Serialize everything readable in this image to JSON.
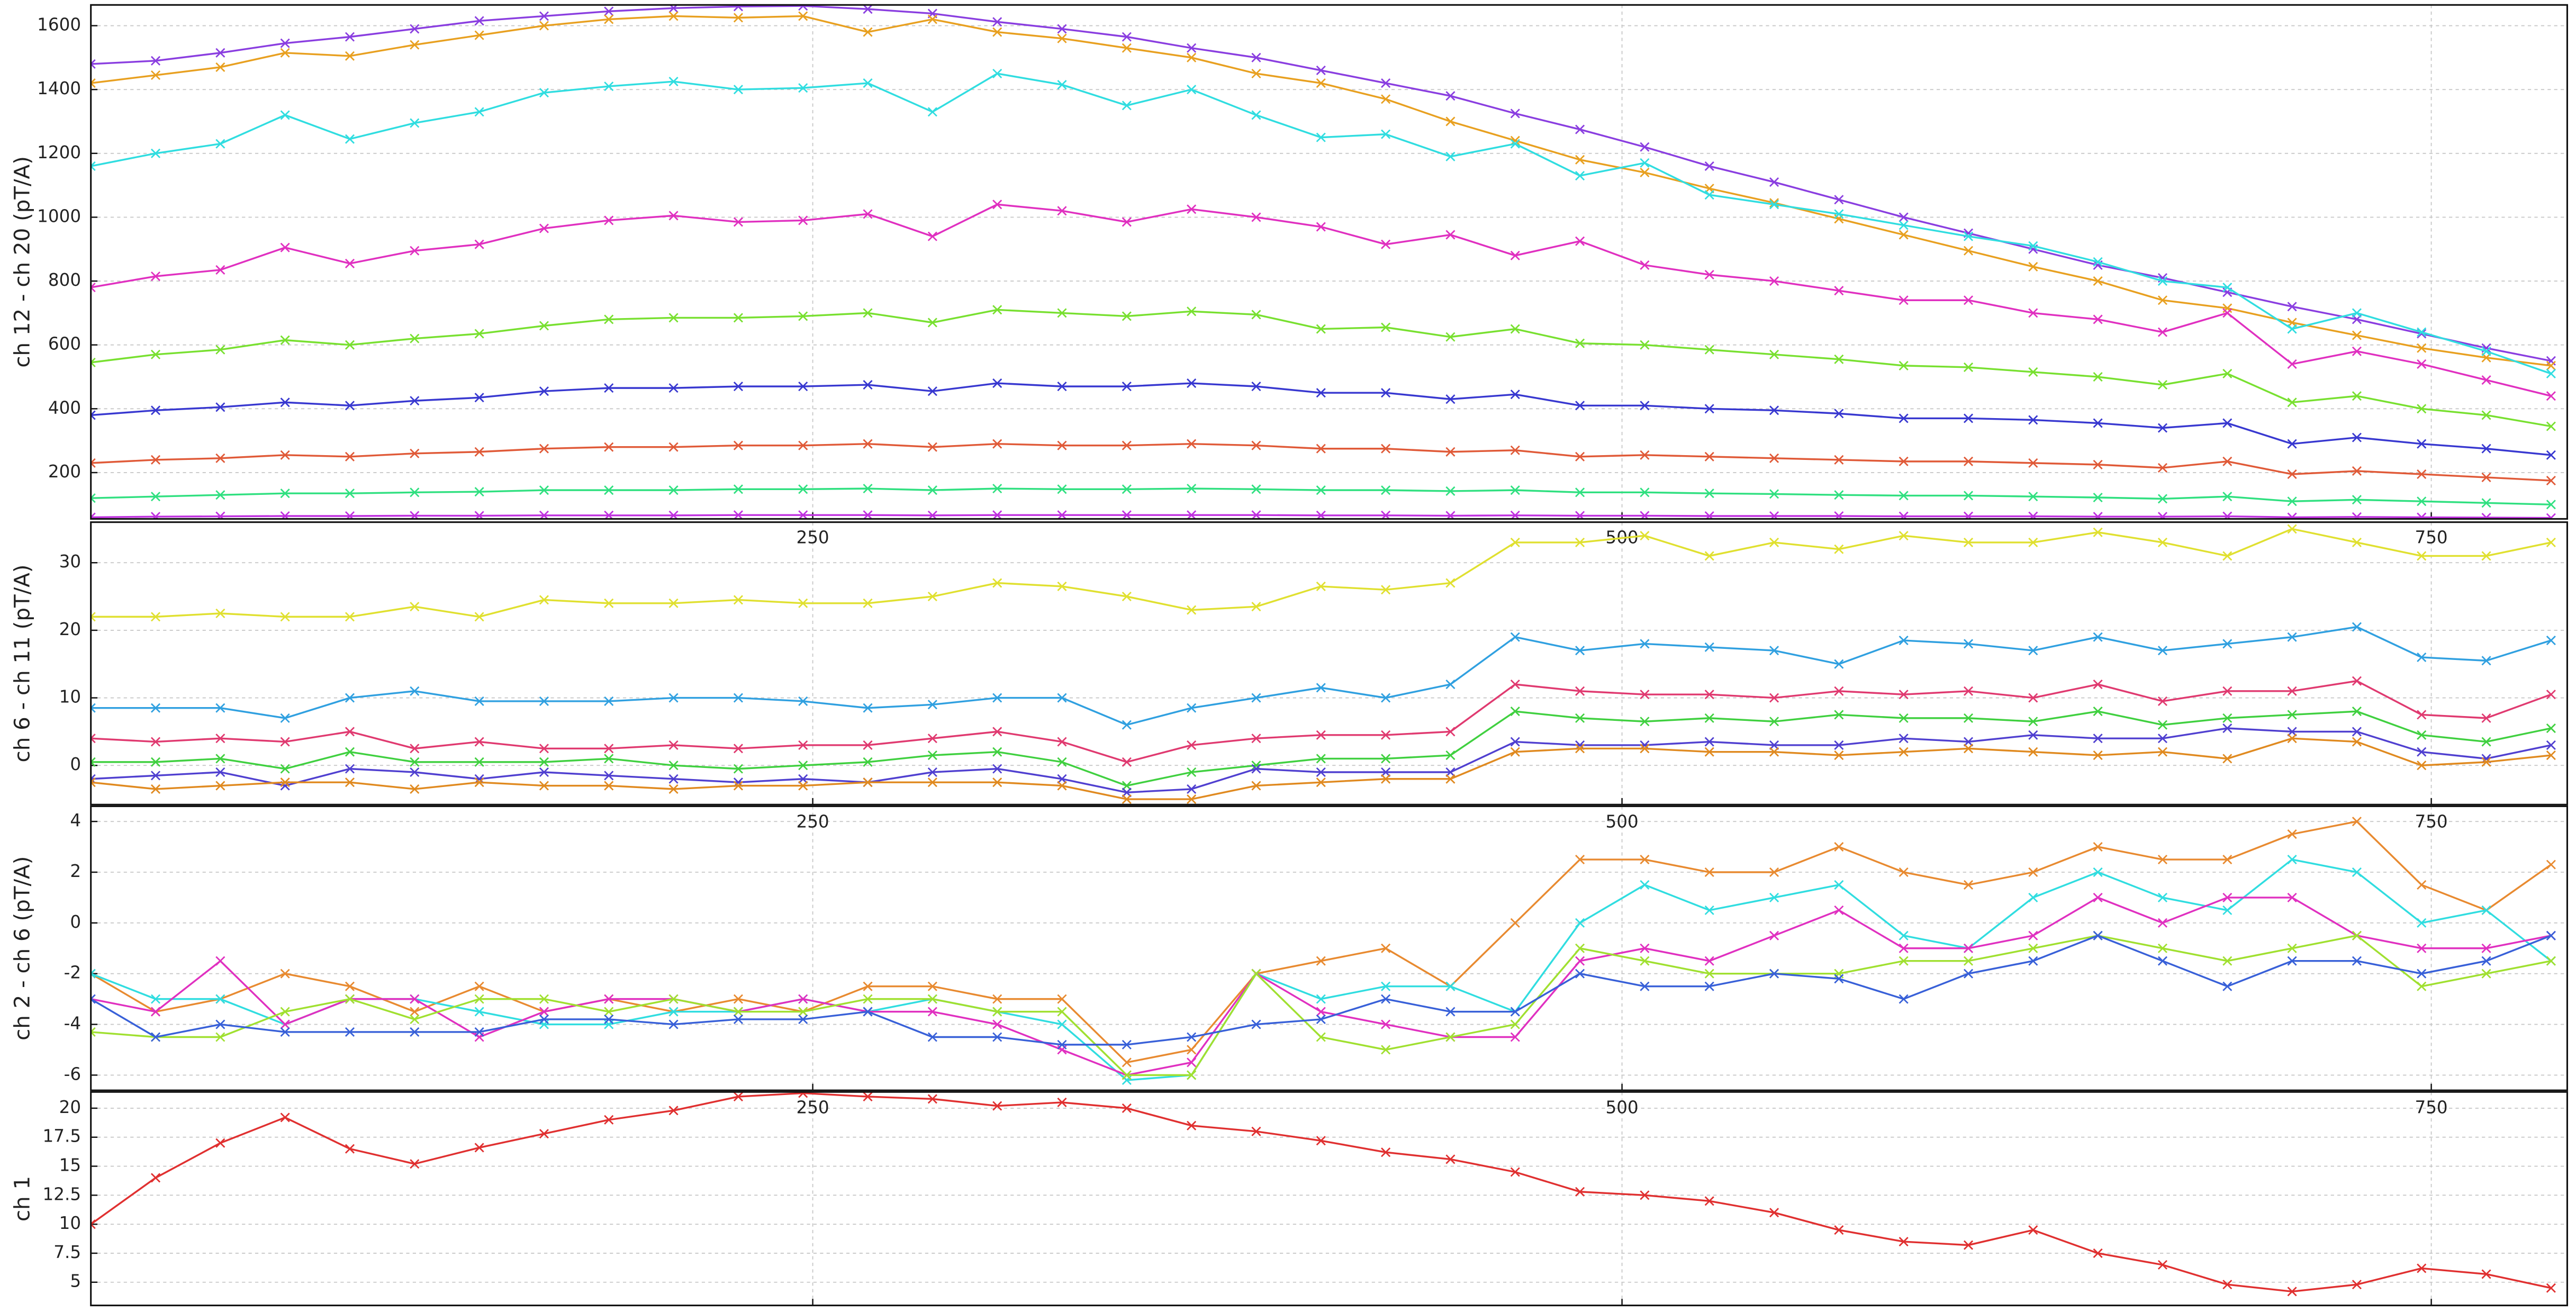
{
  "chart_data": [
    {
      "type": "line",
      "ylabel": "ch 12 - ch 20 (pT/A)",
      "marker": "x",
      "grid": true,
      "x": [
        27,
        47,
        67,
        87,
        107,
        127,
        147,
        167,
        187,
        207,
        227,
        247,
        267,
        287,
        307,
        327,
        347,
        367,
        387,
        407,
        427,
        447,
        467,
        487,
        507,
        527,
        547,
        567,
        587,
        607,
        627,
        647,
        667,
        687,
        707,
        727,
        747,
        767,
        787
      ],
      "xlim": [
        27,
        792
      ],
      "xticks": [
        250,
        500,
        750
      ],
      "ylim": [
        55,
        1665
      ],
      "yticks": [
        200,
        400,
        600,
        800,
        1000,
        1200,
        1400,
        1600
      ],
      "series": [
        {
          "color": "#8a3ee0",
          "values": [
            1480,
            1490,
            1515,
            1545,
            1565,
            1590,
            1615,
            1630,
            1645,
            1655,
            1660,
            1662,
            1652,
            1638,
            1612,
            1590,
            1565,
            1530,
            1500,
            1460,
            1420,
            1380,
            1325,
            1275,
            1220,
            1160,
            1110,
            1055,
            1000,
            950,
            900,
            850,
            810,
            765,
            720,
            680,
            635,
            590,
            550
          ]
        },
        {
          "color": "#e8a020",
          "values": [
            1420,
            1445,
            1470,
            1515,
            1505,
            1540,
            1570,
            1600,
            1620,
            1630,
            1625,
            1630,
            1580,
            1620,
            1580,
            1560,
            1530,
            1500,
            1450,
            1420,
            1370,
            1300,
            1240,
            1180,
            1140,
            1090,
            1045,
            995,
            945,
            895,
            845,
            800,
            740,
            715,
            670,
            630,
            590,
            560,
            535
          ]
        },
        {
          "color": "#30dde0",
          "values": [
            1160,
            1200,
            1230,
            1320,
            1245,
            1295,
            1330,
            1390,
            1410,
            1425,
            1400,
            1405,
            1420,
            1330,
            1450,
            1415,
            1350,
            1400,
            1320,
            1250,
            1260,
            1190,
            1230,
            1130,
            1170,
            1070,
            1040,
            1010,
            975,
            940,
            910,
            860,
            800,
            780,
            650,
            700,
            640,
            580,
            510
          ]
        },
        {
          "color": "#e030c0",
          "values": [
            780,
            815,
            835,
            905,
            855,
            895,
            915,
            965,
            990,
            1005,
            985,
            990,
            1010,
            940,
            1040,
            1020,
            985,
            1025,
            1000,
            970,
            915,
            945,
            880,
            925,
            850,
            820,
            800,
            770,
            740,
            740,
            700,
            680,
            640,
            700,
            540,
            580,
            540,
            490,
            440
          ]
        },
        {
          "color": "#78e030",
          "values": [
            545,
            570,
            585,
            615,
            600,
            620,
            635,
            660,
            680,
            685,
            685,
            690,
            700,
            670,
            710,
            700,
            690,
            705,
            695,
            650,
            655,
            625,
            650,
            605,
            600,
            585,
            570,
            555,
            535,
            530,
            515,
            500,
            475,
            510,
            420,
            440,
            400,
            380,
            345
          ]
        },
        {
          "color": "#3838d0",
          "values": [
            380,
            395,
            405,
            420,
            410,
            425,
            435,
            455,
            465,
            465,
            470,
            470,
            475,
            455,
            480,
            470,
            470,
            480,
            470,
            450,
            450,
            430,
            445,
            410,
            410,
            400,
            395,
            385,
            370,
            370,
            365,
            355,
            340,
            355,
            290,
            310,
            290,
            275,
            255
          ]
        },
        {
          "color": "#e05a38",
          "values": [
            230,
            240,
            245,
            255,
            250,
            260,
            265,
            275,
            280,
            280,
            285,
            285,
            290,
            280,
            290,
            285,
            285,
            290,
            285,
            275,
            275,
            265,
            270,
            250,
            255,
            250,
            245,
            240,
            235,
            235,
            230,
            225,
            215,
            235,
            195,
            205,
            195,
            185,
            175
          ]
        },
        {
          "color": "#30e080",
          "values": [
            120,
            125,
            130,
            135,
            135,
            138,
            140,
            145,
            145,
            145,
            148,
            148,
            150,
            145,
            150,
            148,
            148,
            150,
            148,
            145,
            145,
            142,
            145,
            138,
            138,
            135,
            133,
            130,
            128,
            128,
            125,
            122,
            118,
            125,
            110,
            115,
            110,
            105,
            100
          ]
        },
        {
          "color": "#c030e0",
          "values": [
            60,
            62,
            63,
            64,
            64,
            65,
            65,
            66,
            66,
            66,
            67,
            67,
            67,
            66,
            67,
            67,
            67,
            67,
            67,
            66,
            66,
            65,
            66,
            65,
            65,
            64,
            64,
            64,
            63,
            63,
            63,
            62,
            62,
            63,
            60,
            61,
            60,
            59,
            58
          ]
        }
      ]
    },
    {
      "type": "line",
      "ylabel": "ch 6 - ch 11 (pT/A)",
      "marker": "x",
      "grid": true,
      "x": [
        27,
        47,
        67,
        87,
        107,
        127,
        147,
        167,
        187,
        207,
        227,
        247,
        267,
        287,
        307,
        327,
        347,
        367,
        387,
        407,
        427,
        447,
        467,
        487,
        507,
        527,
        547,
        567,
        587,
        607,
        627,
        647,
        667,
        687,
        707,
        727,
        747,
        767,
        787
      ],
      "xlim": [
        27,
        792
      ],
      "xticks": [
        250,
        500,
        750
      ],
      "ylim": [
        -5.8,
        36
      ],
      "yticks": [
        0,
        10,
        20,
        30
      ],
      "series": [
        {
          "color": "#e0e030",
          "values": [
            22,
            22,
            22.5,
            22,
            22,
            23.5,
            22,
            24.5,
            24,
            24,
            24.5,
            24,
            24,
            25,
            27,
            26.5,
            25,
            23,
            23.5,
            26.5,
            26,
            27,
            33,
            33,
            34,
            31,
            33,
            32,
            34,
            33,
            33,
            34.5,
            33,
            31,
            35,
            33,
            31,
            31,
            33
          ]
        },
        {
          "color": "#30a0e0",
          "values": [
            8.5,
            8.5,
            8.5,
            7,
            10,
            11,
            9.5,
            9.5,
            9.5,
            10,
            10,
            9.5,
            8.5,
            9,
            10,
            10,
            6,
            8.5,
            10,
            11.5,
            10,
            12,
            19,
            17,
            18,
            17.5,
            17,
            15,
            18.5,
            18,
            17,
            19,
            17,
            18,
            19,
            20.5,
            16,
            15.5,
            18.5
          ]
        },
        {
          "color": "#e03a70",
          "values": [
            4,
            3.5,
            4,
            3.5,
            5,
            2.5,
            3.5,
            2.5,
            2.5,
            3,
            2.5,
            3,
            3,
            4,
            5,
            3.5,
            0.5,
            3,
            4,
            4.5,
            4.5,
            5,
            12,
            11,
            10.5,
            10.5,
            10,
            11,
            10.5,
            11,
            10,
            12,
            9.5,
            11,
            11,
            12.5,
            7.5,
            7,
            10.5
          ]
        },
        {
          "color": "#40d040",
          "values": [
            0.5,
            0.5,
            1,
            -0.5,
            2,
            0.5,
            0.5,
            0.5,
            1,
            0,
            -0.5,
            0,
            0.5,
            1.5,
            2,
            0.5,
            -3,
            -1,
            0,
            1,
            1,
            1.5,
            8,
            7,
            6.5,
            7,
            6.5,
            7.5,
            7,
            7,
            6.5,
            8,
            6,
            7,
            7.5,
            8,
            4.5,
            3.5,
            5.5
          ]
        },
        {
          "color": "#5040d0",
          "values": [
            -2,
            -1.5,
            -1,
            -3,
            -0.5,
            -1,
            -2,
            -1,
            -1.5,
            -2,
            -2.5,
            -2,
            -2.5,
            -1,
            -0.5,
            -2,
            -4,
            -3.5,
            -0.5,
            -1,
            -1,
            -1,
            3.5,
            3,
            3,
            3.5,
            3,
            3,
            4,
            3.5,
            4.5,
            4,
            4,
            5.5,
            5,
            5,
            2,
            1,
            3
          ]
        },
        {
          "color": "#e08a20",
          "values": [
            -2.5,
            -3.5,
            -3,
            -2.5,
            -2.5,
            -3.5,
            -2.5,
            -3,
            -3,
            -3.5,
            -3,
            -3,
            -2.5,
            -2.5,
            -2.5,
            -3,
            -5,
            -5,
            -3,
            -2.5,
            -2,
            -2,
            2,
            2.5,
            2.5,
            2,
            2,
            1.5,
            2,
            2.5,
            2,
            1.5,
            2,
            1,
            4,
            3.5,
            0,
            0.5,
            1.5
          ]
        }
      ]
    },
    {
      "type": "line",
      "ylabel": "ch 2 - ch 6 (pT/A)",
      "marker": "x",
      "grid": true,
      "x": [
        27,
        47,
        67,
        87,
        107,
        127,
        147,
        167,
        187,
        207,
        227,
        247,
        267,
        287,
        307,
        327,
        347,
        367,
        387,
        407,
        427,
        447,
        467,
        487,
        507,
        527,
        547,
        567,
        587,
        607,
        627,
        647,
        667,
        687,
        707,
        727,
        747,
        767,
        787
      ],
      "xlim": [
        27,
        792
      ],
      "xticks": [
        250,
        500,
        750
      ],
      "ylim": [
        -6.6,
        4.6
      ],
      "yticks": [
        -6,
        -4,
        -2,
        0,
        2,
        4
      ],
      "series": [
        {
          "color": "#e88a30",
          "values": [
            -2,
            -3.5,
            -3,
            -2,
            -2.5,
            -3.5,
            -2.5,
            -3.5,
            -3,
            -3.5,
            -3,
            -3.5,
            -2.5,
            -2.5,
            -3,
            -3,
            -5.5,
            -5,
            -2,
            -1.5,
            -1,
            -2.5,
            0,
            2.5,
            2.5,
            2,
            2,
            3,
            2,
            1.5,
            2,
            3,
            2.5,
            2.5,
            3.5,
            4,
            1.5,
            0.5,
            2.3
          ]
        },
        {
          "color": "#30dde0",
          "values": [
            -2,
            -3,
            -3,
            -4,
            -3,
            -3,
            -3.5,
            -4,
            -4,
            -3.5,
            -3.5,
            -3,
            -3.5,
            -3,
            -3.5,
            -4,
            -6.2,
            -6,
            -2,
            -3,
            -2.5,
            -2.5,
            -3.5,
            0,
            1.5,
            0.5,
            1,
            1.5,
            -0.5,
            -1,
            1,
            2,
            1,
            0.5,
            2.5,
            2,
            0,
            0.5,
            -1.5
          ]
        },
        {
          "color": "#e030c0",
          "values": [
            -3,
            -3.5,
            -1.5,
            -4,
            -3,
            -3,
            -4.5,
            -3.5,
            -3,
            -3,
            -3.5,
            -3,
            -3.5,
            -3.5,
            -4,
            -5,
            -6,
            -5.5,
            -2,
            -3.5,
            -4,
            -4.5,
            -4.5,
            -1.5,
            -1,
            -1.5,
            -0.5,
            0.5,
            -1,
            -1,
            -0.5,
            1,
            0,
            1,
            1,
            -0.5,
            -1,
            -1,
            -0.5
          ]
        },
        {
          "color": "#a0e030",
          "values": [
            -4.3,
            -4.5,
            -4.5,
            -3.5,
            -3,
            -3.8,
            -3,
            -3,
            -3.5,
            -3,
            -3.5,
            -3.5,
            -3,
            -3,
            -3.5,
            -3.5,
            -6,
            -6,
            -2,
            -4.5,
            -5,
            -4.5,
            -4,
            -1,
            -1.5,
            -2,
            -2,
            -2,
            -1.5,
            -1.5,
            -1,
            -0.5,
            -1,
            -1.5,
            -1,
            -0.5,
            -2.5,
            -2,
            -1.5
          ]
        },
        {
          "color": "#3860d8",
          "values": [
            -3,
            -4.5,
            -4,
            -4.3,
            -4.3,
            -4.3,
            -4.3,
            -3.8,
            -3.8,
            -4,
            -3.8,
            -3.8,
            -3.5,
            -4.5,
            -4.5,
            -4.8,
            -4.8,
            -4.5,
            -4,
            -3.8,
            -3,
            -3.5,
            -3.5,
            -2,
            -2.5,
            -2.5,
            -2,
            -2.2,
            -3,
            -2,
            -1.5,
            -0.5,
            -1.5,
            -2.5,
            -1.5,
            -1.5,
            -2,
            -1.5,
            -0.5
          ]
        }
      ]
    },
    {
      "type": "line",
      "ylabel": "ch 1",
      "marker": "x",
      "grid": true,
      "x": [
        27,
        47,
        67,
        87,
        107,
        127,
        147,
        167,
        187,
        207,
        227,
        247,
        267,
        287,
        307,
        327,
        347,
        367,
        387,
        407,
        427,
        447,
        467,
        487,
        507,
        527,
        547,
        567,
        587,
        607,
        627,
        647,
        667,
        687,
        707,
        727,
        747,
        767,
        787
      ],
      "xlim": [
        27,
        792
      ],
      "xticks": [
        250,
        500,
        750
      ],
      "ylim": [
        3,
        21.4
      ],
      "yticks": [
        5,
        7.5,
        10,
        12.5,
        15,
        17.5,
        20
      ],
      "series": [
        {
          "color": "#e03030",
          "values": [
            10,
            14,
            17,
            19.2,
            16.5,
            15.2,
            16.6,
            17.8,
            19,
            19.8,
            21,
            21.3,
            21,
            20.8,
            20.2,
            20.5,
            20,
            18.5,
            18,
            17.2,
            16.2,
            15.6,
            14.5,
            12.8,
            12.5,
            12,
            11,
            9.5,
            8.5,
            8.2,
            9.5,
            7.5,
            6.5,
            4.8,
            4.2,
            4.8,
            6.2,
            5.7,
            4.5
          ]
        }
      ]
    }
  ]
}
